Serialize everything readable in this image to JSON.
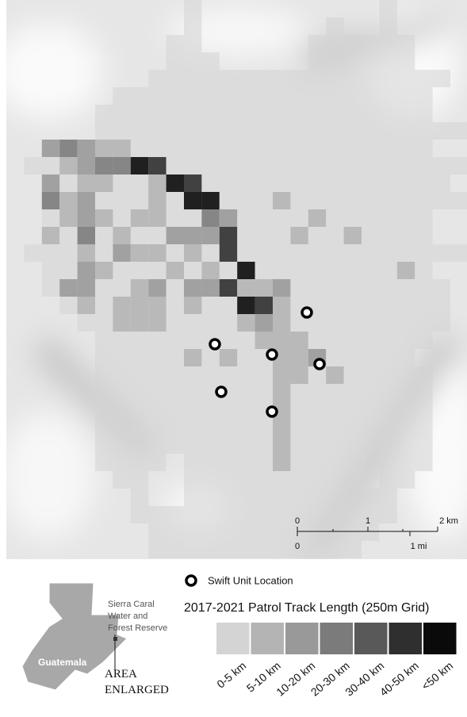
{
  "scale_bar": {
    "km_labels": [
      "0",
      "1",
      "2 km"
    ],
    "mi_labels": [
      "0",
      "1 mi"
    ]
  },
  "legend": {
    "marker_label": "Swift Unit Location",
    "title": "2017-2021 Patrol Track Length (250m Grid)",
    "classes": [
      "0-5 km",
      "5-10 km",
      "10-20 km",
      "20-30 km",
      "30-40 km",
      "40-50 km",
      "<50 km"
    ],
    "colors": [
      "#d4d4d4",
      "#b4b4b4",
      "#999999",
      "#7b7b7b",
      "#595959",
      "#2f2f2f",
      "#0a0a0a"
    ]
  },
  "inset": {
    "reserve_label": "Sierra Caral Water and Forest Reserve",
    "country_label": "Guatemala",
    "area_label": "AREA ENLARGED"
  }
}
